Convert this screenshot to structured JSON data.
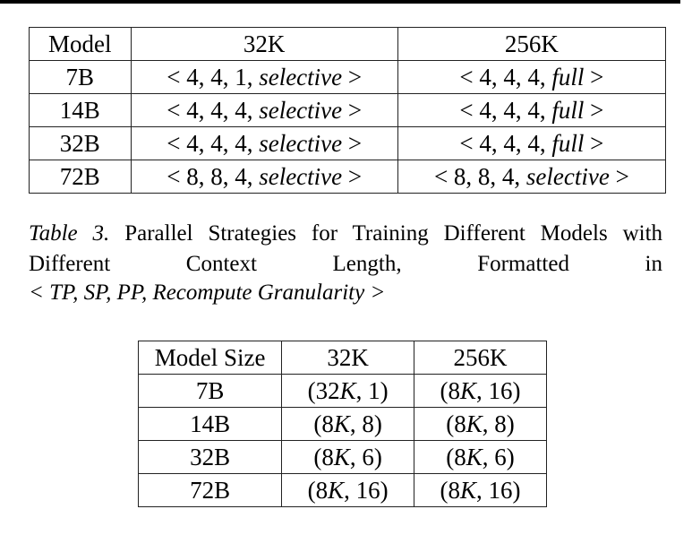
{
  "table1": {
    "headers": [
      "Model",
      "32K",
      "256K"
    ],
    "rows": [
      [
        "7B",
        "< 4, 4, 1, selective >",
        "< 4, 4, 4, full >"
      ],
      [
        "14B",
        "< 4, 4, 4, selective >",
        "< 4, 4, 4, full >"
      ],
      [
        "32B",
        "< 4, 4, 4, selective >",
        "< 4, 4, 4, full >"
      ],
      [
        "72B",
        "< 8, 8, 4, selective >",
        "< 8, 8, 4, selective >"
      ]
    ]
  },
  "caption": {
    "label": "Table 3.",
    "text": "Parallel Strategies for Training Different Models with Different Context Length, Formatted in",
    "format": "< TP, SP, PP, Recompute Granularity >"
  },
  "table2": {
    "headers": [
      "Model Size",
      "32K",
      "256K"
    ],
    "rows": [
      [
        "7B",
        "(32K, 1)",
        "(8K, 16)"
      ],
      [
        "14B",
        "(8K, 8)",
        "(8K, 8)"
      ],
      [
        "32B",
        "(8K, 6)",
        "(8K, 6)"
      ],
      [
        "72B",
        "(8K, 16)",
        "(8K, 16)"
      ]
    ]
  }
}
